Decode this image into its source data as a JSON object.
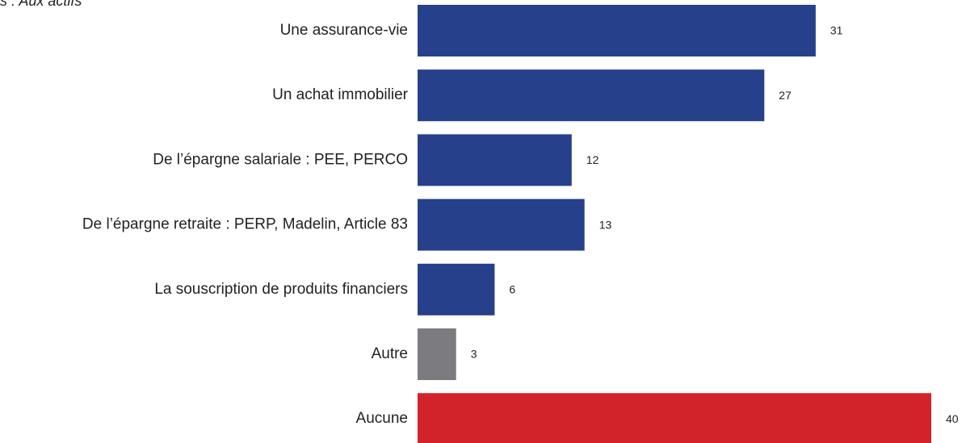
{
  "chart_data": {
    "type": "bar",
    "orientation": "horizontal",
    "subtitle": "s : Aux actifs",
    "categories": [
      "Une assurance-vie",
      "Un achat immobilier",
      "De l’épargne salariale : PEE, PERCO",
      "De l’épargne retraite : PERP, Madelin, Article 83",
      "La souscription de produits financiers",
      "Autre",
      "Aucune"
    ],
    "values": [
      31,
      27,
      12,
      13,
      6,
      3,
      40
    ],
    "colors": [
      "#27408b",
      "#27408b",
      "#27408b",
      "#27408b",
      "#27408b",
      "#7b7b80",
      "#d2232a"
    ]
  }
}
